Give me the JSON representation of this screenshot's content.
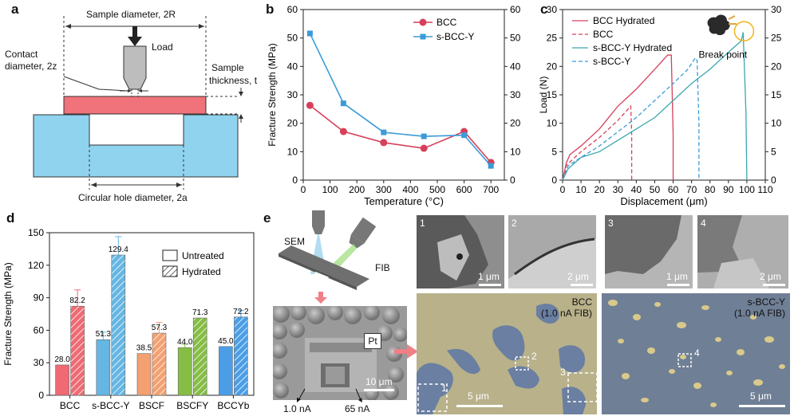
{
  "panels": {
    "a": "a",
    "b": "b",
    "c": "c",
    "d": "d",
    "e": "e"
  },
  "panel_a": {
    "sample_diameter": "Sample diameter, 2R",
    "load": "Load",
    "contact_diameter_1": "Contact",
    "contact_diameter_2": "diameter, 2z",
    "sample_thickness_1": "Sample",
    "sample_thickness_2": "thickness, t",
    "hole_diameter": "Circular hole diameter, 2a",
    "colors": {
      "sample": "#f0727a",
      "support": "#8fd3ef"
    }
  },
  "chart_data": [
    {
      "id": "b",
      "type": "line",
      "x": [
        25,
        150,
        300,
        450,
        600,
        700
      ],
      "series": [
        {
          "name": "BCC",
          "values": [
            26.3,
            17.1,
            13.2,
            11.2,
            17.1,
            6.2
          ],
          "color": "#d6405a",
          "marker": "circle"
        },
        {
          "name": "s-BCC-Y",
          "values": [
            51.6,
            27.0,
            16.8,
            15.4,
            15.8,
            5.0
          ],
          "color": "#3a9bd8",
          "marker": "square"
        }
      ],
      "xlabel": "Temperature (°C)",
      "ylabel": "Fracture Strength (MPa)",
      "xlim": [
        0,
        750
      ],
      "ylim": [
        0,
        60
      ],
      "xticks": [
        0,
        100,
        200,
        300,
        400,
        500,
        600,
        700
      ],
      "yticks": [
        0,
        10,
        20,
        30,
        40,
        50,
        60
      ],
      "legend": "top-right"
    },
    {
      "id": "c",
      "type": "line",
      "series": [
        {
          "name": "BCC  Hydrated",
          "style": "solid",
          "color": "#d6405a",
          "x": [
            0,
            2,
            4,
            10,
            20,
            30,
            40,
            50,
            57,
            59,
            60,
            60
          ],
          "y": [
            0,
            3,
            4.5,
            6,
            9,
            13,
            16,
            19.5,
            22,
            22,
            8,
            0
          ]
        },
        {
          "name": "BCC",
          "style": "dashed",
          "color": "#d6405a",
          "x": [
            0,
            2,
            5,
            10,
            20,
            30,
            37,
            37.5,
            37.5
          ],
          "y": [
            0,
            2.5,
            3.5,
            5,
            7.5,
            10.5,
            13,
            8,
            0
          ]
        },
        {
          "name": "s-BCC-Y Hydrated",
          "style": "solid",
          "color": "#3aa8b0",
          "x": [
            0,
            3,
            10,
            20,
            30,
            40,
            50,
            60,
            70,
            80,
            90,
            97,
            98,
            99.5,
            100
          ],
          "y": [
            0,
            2,
            4,
            5,
            7,
            9,
            11,
            14,
            17,
            19.5,
            22.5,
            24.5,
            26,
            12,
            0
          ]
        },
        {
          "name": "s-BCC-Y",
          "style": "dashed",
          "color": "#3a9bd8",
          "x": [
            0,
            3,
            10,
            20,
            30,
            40,
            50,
            60,
            68,
            72,
            73,
            74,
            74
          ],
          "y": [
            0,
            2.5,
            4,
            6,
            8.5,
            11,
            14,
            17,
            19.5,
            21.5,
            21,
            10,
            0
          ]
        }
      ],
      "xlabel": "Displacement (μm)",
      "ylabel": "Load (N)",
      "xlim": [
        0,
        110
      ],
      "ylim": [
        0,
        30
      ],
      "xticks": [
        0,
        10,
        20,
        30,
        40,
        50,
        60,
        70,
        80,
        90,
        100,
        110
      ],
      "yticks": [
        0,
        5,
        10,
        15,
        20,
        25,
        30
      ],
      "annotation": "Break point",
      "legend": "top-left"
    },
    {
      "id": "d",
      "type": "bar",
      "categories": [
        "BCC",
        "s-BCC-Y",
        "BSCF",
        "BSCFY",
        "BCCYb"
      ],
      "series": [
        {
          "name": "Untreated",
          "values": [
            28.0,
            51.3,
            38.5,
            44.0,
            45.0
          ],
          "errors": [
            0,
            7,
            0,
            3,
            0
          ]
        },
        {
          "name": "Hydrated",
          "values": [
            82.2,
            129.4,
            57.3,
            71.3,
            72.2
          ],
          "errors": [
            15,
            17,
            10,
            0,
            6
          ]
        }
      ],
      "value_labels": {
        "Untreated": [
          "28.0",
          "51.3",
          "38.5",
          "44.0",
          "45.0"
        ],
        "Hydrated": [
          "82.2",
          "129.4",
          "57.3",
          "71.3",
          "72.2"
        ]
      },
      "colors": [
        "#ef6a72",
        "#65b6e3",
        "#f4a070",
        "#86bd45",
        "#4b9ee6"
      ],
      "ylabel": "Fracture Strength (MPa)",
      "ylim": [
        0,
        150
      ],
      "yticks": [
        0,
        30,
        60,
        90,
        120,
        150
      ],
      "legend": "top-right"
    }
  ],
  "panel_e": {
    "sem": "SEM",
    "fib": "FIB",
    "pt": "Pt",
    "scale_sem": "10 μm",
    "current_1": "1.0 nA",
    "current_2": "65 nA",
    "tiles": [
      {
        "num": "1",
        "scale": "1 μm"
      },
      {
        "num": "2",
        "scale": "2 μm"
      },
      {
        "num": "3",
        "scale": "1 μm"
      },
      {
        "num": "4",
        "scale": "2 μm"
      }
    ],
    "map_left": {
      "line1": "BCC",
      "line2": "(1.0 nA FIB)",
      "scale": "5 μm",
      "boxes": [
        "1",
        "2",
        "3"
      ]
    },
    "map_right": {
      "line1": "s-BCC-Y",
      "line2": "(1.0 nA FIB)",
      "scale": "5 μm",
      "boxes": [
        "4"
      ]
    }
  }
}
